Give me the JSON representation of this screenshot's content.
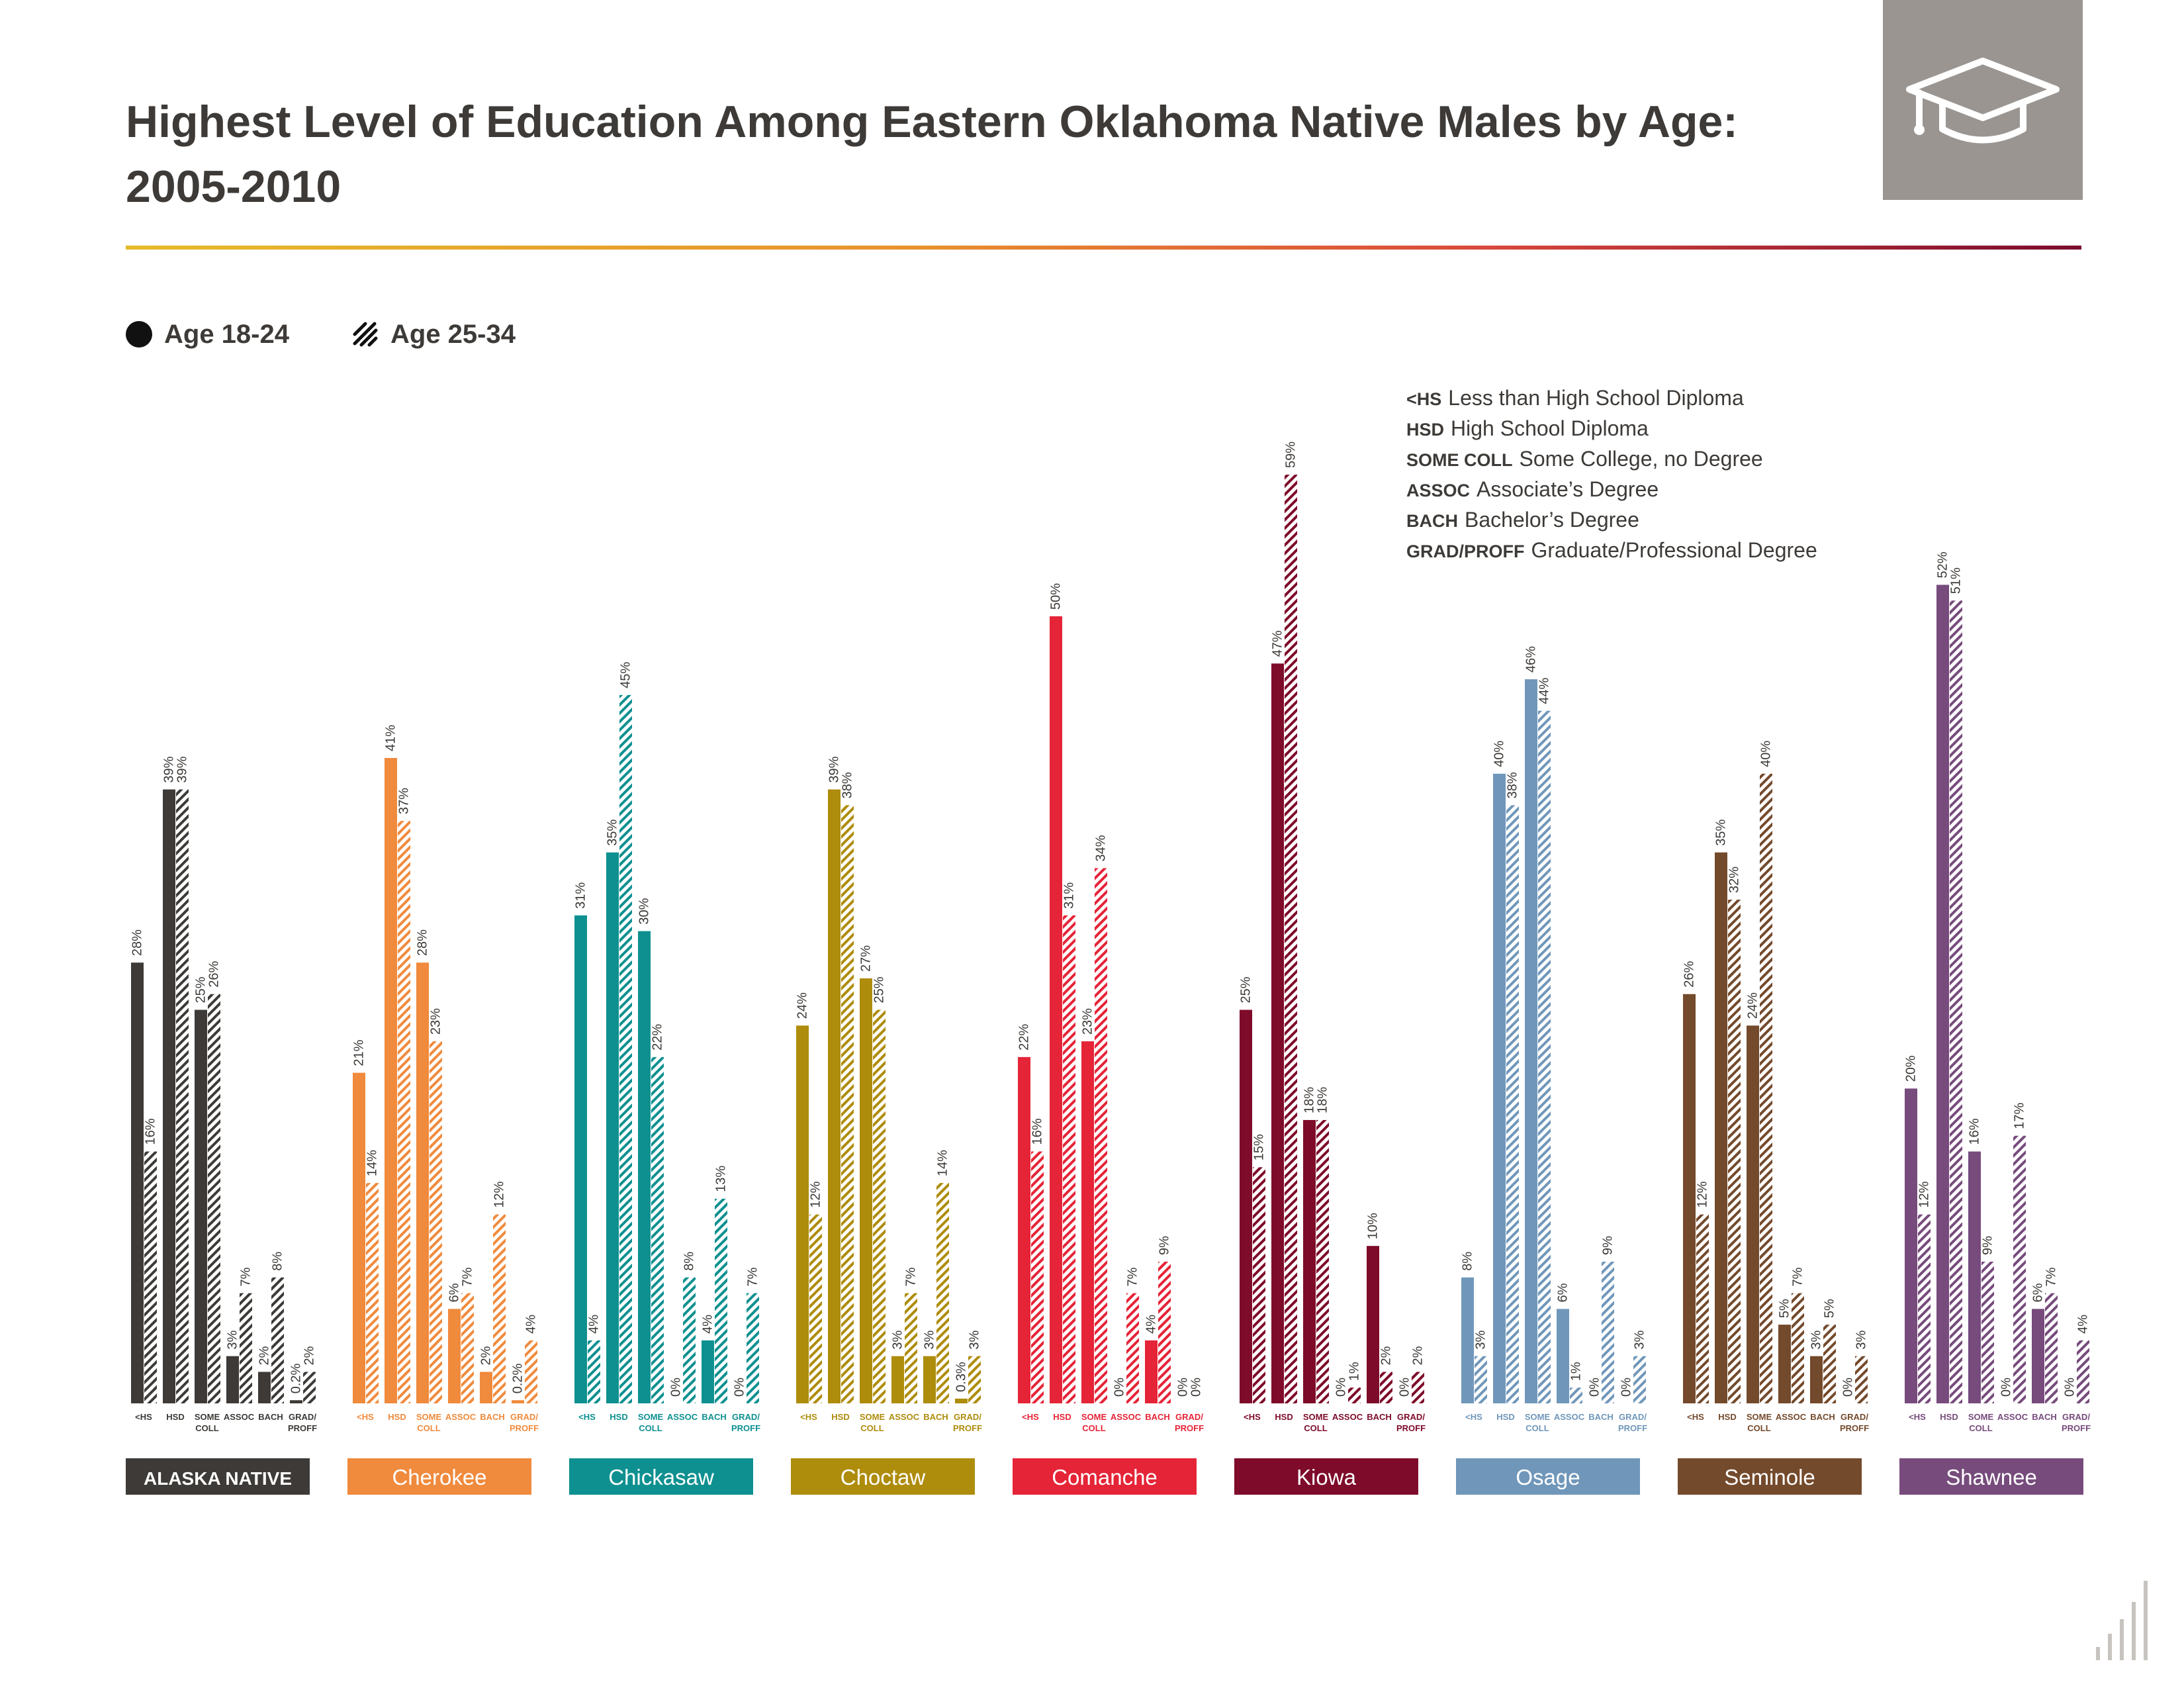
{
  "title": "Highest Level of Education Among Eastern Oklahoma Native Males by Age: 2005-2010",
  "header_icon": "graduation-cap-icon",
  "legend": [
    {
      "label": "Age 18-24",
      "style": "solid"
    },
    {
      "label": "Age 25-34",
      "style": "hatched"
    }
  ],
  "abbreviations": [
    {
      "code": "<HS",
      "desc": "Less than High School Diploma"
    },
    {
      "code": "HSD",
      "desc": "High School Diploma"
    },
    {
      "code": "SOME COLL",
      "desc": "Some College, no Degree"
    },
    {
      "code": "ASSOC",
      "desc": "Associate’s Degree"
    },
    {
      "code": "BACH",
      "desc": "Bachelor’s Degree"
    },
    {
      "code": "GRAD/PROFF",
      "desc": "Graduate/Professional Degree"
    }
  ],
  "chart_data": {
    "type": "bar",
    "categories": [
      {
        "line1": "<HS",
        "line2": ""
      },
      {
        "line1": "HSD",
        "line2": ""
      },
      {
        "line1": "SOME",
        "line2": "COLL"
      },
      {
        "line1": "ASSOC",
        "line2": ""
      },
      {
        "line1": "BACH",
        "line2": ""
      },
      {
        "line1": "GRAD/",
        "line2": "PROFF"
      }
    ],
    "ylim": [
      0,
      59
    ],
    "series_names": [
      "Age 18-24",
      "Age 25-34"
    ],
    "groups": [
      {
        "name": "ALASKA NATIVE",
        "color": "#3d3a37",
        "label_style": "bold-caps",
        "age_18_24": [
          28,
          39,
          25,
          3,
          2,
          0.2
        ],
        "age_25_34": [
          16,
          39,
          26,
          7,
          8,
          2
        ],
        "labels_18_24": [
          "28%",
          "39%",
          "25%",
          "3%",
          "2%",
          "0.2%"
        ],
        "labels_25_34": [
          "16%",
          "39%",
          "26%",
          "7%",
          "8%",
          "2%"
        ]
      },
      {
        "name": "Cherokee",
        "color": "#f08a3c",
        "age_18_24": [
          21,
          41,
          28,
          6,
          2,
          0.2
        ],
        "age_25_34": [
          14,
          37,
          23,
          7,
          12,
          4
        ],
        "labels_18_24": [
          "21%",
          "41%",
          "28%",
          "6%",
          "2%",
          "0.2%"
        ],
        "labels_25_34": [
          "14%",
          "37%",
          "23%",
          "7%",
          "12%",
          "4%"
        ]
      },
      {
        "name": "Chickasaw",
        "color": "#0f9090",
        "age_18_24": [
          31,
          35,
          30,
          0,
          4,
          0
        ],
        "age_25_34": [
          4,
          45,
          22,
          8,
          13,
          7
        ],
        "labels_18_24": [
          "31%",
          "35%",
          "30%",
          "0%",
          "4%",
          "0%"
        ],
        "labels_25_34": [
          "4%",
          "45%",
          "22%",
          "8%",
          "13%",
          "7%"
        ]
      },
      {
        "name": "Choctaw",
        "color": "#ae8c0c",
        "age_18_24": [
          24,
          39,
          27,
          3,
          3,
          0.3
        ],
        "age_25_34": [
          12,
          38,
          25,
          7,
          14,
          3
        ],
        "labels_18_24": [
          "24%",
          "39%",
          "27%",
          "3%",
          "3%",
          "0.3%"
        ],
        "labels_25_34": [
          "12%",
          "38%",
          "25%",
          "7%",
          "14%",
          "3%"
        ]
      },
      {
        "name": "Comanche",
        "color": "#e52437",
        "age_18_24": [
          22,
          50,
          23,
          0,
          4,
          0
        ],
        "age_25_34": [
          16,
          31,
          34,
          7,
          9,
          0
        ],
        "labels_18_24": [
          "22%",
          "50%",
          "23%",
          "0%",
          "4%",
          "0%"
        ],
        "labels_25_34": [
          "16%",
          "31%",
          "34%",
          "7%",
          "9%",
          "0%"
        ]
      },
      {
        "name": "Kiowa",
        "color": "#7e0b2a",
        "age_18_24": [
          25,
          47,
          18,
          0,
          10,
          0
        ],
        "age_25_34": [
          15,
          59,
          18,
          1,
          2,
          2
        ],
        "labels_18_24": [
          "25%",
          "47%",
          "18%",
          "0%",
          "10%",
          "0%"
        ],
        "labels_25_34": [
          "15%",
          "59%",
          "18%",
          "1%",
          "2%",
          "2%"
        ]
      },
      {
        "name": "Osage",
        "color": "#7097ba",
        "age_18_24": [
          8,
          40,
          46,
          6,
          0,
          0
        ],
        "age_25_34": [
          3,
          38,
          44,
          1,
          9,
          3
        ],
        "labels_18_24": [
          "8%",
          "40%",
          "46%",
          "6%",
          "0%",
          "0%"
        ],
        "labels_25_34": [
          "3%",
          "38%",
          "44%",
          "1%",
          "9%",
          "3%"
        ]
      },
      {
        "name": "Seminole",
        "color": "#744a2c",
        "age_18_24": [
          26,
          35,
          24,
          5,
          3,
          0
        ],
        "age_25_34": [
          12,
          32,
          40,
          7,
          5,
          3
        ],
        "labels_18_24": [
          "26%",
          "35%",
          "24%",
          "5%",
          "3%",
          "0%"
        ],
        "labels_25_34": [
          "12%",
          "32%",
          "40%",
          "7%",
          "5%",
          "3%"
        ]
      },
      {
        "name": "Shawnee",
        "color": "#774b7c",
        "age_18_24": [
          20,
          52,
          16,
          0,
          6,
          0
        ],
        "age_25_34": [
          12,
          51,
          9,
          17,
          7,
          4
        ],
        "labels_18_24": [
          "20%",
          "52%",
          "16%",
          "0%",
          "6%",
          "0%"
        ],
        "labels_25_34": [
          "12%",
          "51%",
          "9%",
          "17%",
          "7%",
          "4%"
        ]
      }
    ]
  },
  "watermark_icon": "bar-chart-logo-icon"
}
